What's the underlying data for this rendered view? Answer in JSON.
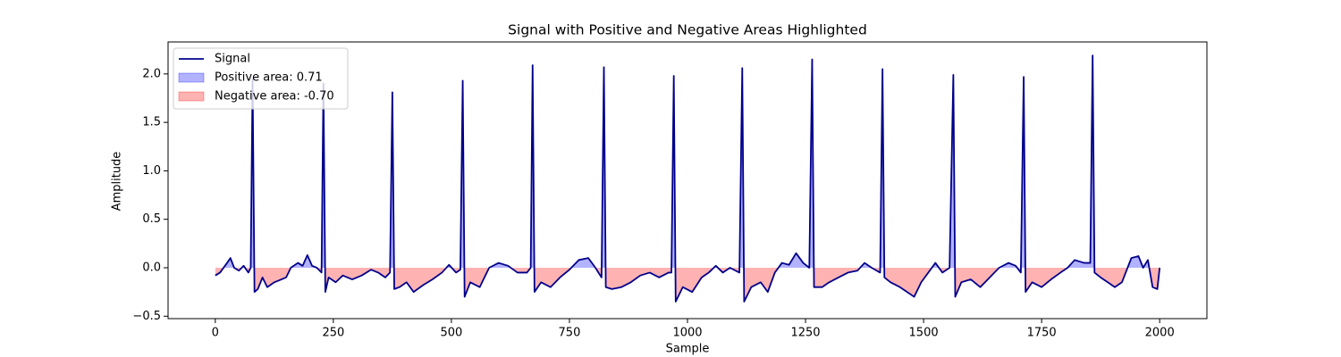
{
  "chart_data": {
    "type": "line",
    "title": "Signal with Positive and Negative Areas Highlighted",
    "xlabel": "Sample",
    "ylabel": "Amplitude",
    "x": [
      0,
      10,
      25,
      32,
      40,
      50,
      60,
      70,
      75,
      79,
      83,
      90,
      100,
      110,
      125,
      140,
      150,
      160,
      175,
      185,
      195,
      205,
      215,
      225,
      229,
      233,
      240,
      255,
      270,
      290,
      310,
      330,
      345,
      360,
      370,
      375,
      379,
      390,
      405,
      420,
      440,
      460,
      480,
      495,
      510,
      519,
      524,
      528,
      540,
      560,
      580,
      600,
      620,
      640,
      660,
      668,
      672,
      676,
      690,
      710,
      730,
      750,
      770,
      790,
      805,
      818,
      823,
      827,
      840,
      860,
      880,
      900,
      920,
      940,
      960,
      966,
      971,
      975,
      990,
      1010,
      1030,
      1045,
      1060,
      1075,
      1090,
      1110,
      1116,
      1120,
      1135,
      1155,
      1170,
      1185,
      1200,
      1215,
      1230,
      1245,
      1258,
      1264,
      1268,
      1285,
      1300,
      1320,
      1340,
      1360,
      1375,
      1390,
      1408,
      1413,
      1417,
      1430,
      1450,
      1465,
      1480,
      1495,
      1510,
      1525,
      1540,
      1555,
      1563,
      1567,
      1580,
      1600,
      1620,
      1640,
      1660,
      1680,
      1695,
      1706,
      1712,
      1716,
      1730,
      1750,
      1770,
      1790,
      1805,
      1820,
      1840,
      1853,
      1858,
      1862,
      1875,
      1890,
      1905,
      1920,
      1940,
      1955,
      1965,
      1975,
      1985,
      1995,
      2000
    ],
    "series": [
      {
        "name": "Signal",
        "color": "#00008b",
        "values": [
          -0.08,
          -0.05,
          0.05,
          0.1,
          0.0,
          -0.03,
          0.02,
          -0.05,
          0.0,
          1.95,
          -0.25,
          -0.22,
          -0.1,
          -0.2,
          -0.15,
          -0.12,
          -0.1,
          0.0,
          0.05,
          0.02,
          0.13,
          0.02,
          0.0,
          -0.05,
          1.9,
          -0.25,
          -0.1,
          -0.15,
          -0.08,
          -0.12,
          -0.08,
          -0.02,
          -0.05,
          -0.1,
          -0.05,
          1.81,
          -0.22,
          -0.2,
          -0.15,
          -0.25,
          -0.18,
          -0.12,
          -0.05,
          0.03,
          -0.05,
          -0.02,
          1.93,
          -0.3,
          -0.15,
          -0.2,
          0.0,
          0.05,
          0.02,
          -0.05,
          -0.05,
          0.0,
          2.09,
          -0.25,
          -0.15,
          -0.2,
          -0.1,
          -0.02,
          0.08,
          0.1,
          0.0,
          -0.1,
          2.07,
          -0.2,
          -0.22,
          -0.2,
          -0.15,
          -0.08,
          -0.05,
          -0.1,
          -0.05,
          -0.05,
          1.98,
          -0.35,
          -0.2,
          -0.25,
          -0.1,
          -0.05,
          0.02,
          -0.05,
          0.0,
          -0.05,
          2.06,
          -0.35,
          -0.2,
          -0.15,
          -0.25,
          -0.05,
          0.05,
          0.03,
          0.15,
          0.05,
          0.0,
          2.15,
          -0.2,
          -0.2,
          -0.15,
          -0.1,
          -0.05,
          -0.03,
          0.05,
          0.0,
          -0.05,
          2.05,
          -0.1,
          -0.15,
          -0.2,
          -0.25,
          -0.3,
          -0.15,
          -0.05,
          0.05,
          -0.05,
          0.0,
          1.99,
          -0.3,
          -0.15,
          -0.12,
          -0.2,
          -0.1,
          0.0,
          0.05,
          0.02,
          -0.05,
          1.97,
          -0.25,
          -0.15,
          -0.2,
          -0.12,
          -0.05,
          0.0,
          0.08,
          0.05,
          0.05,
          2.19,
          -0.05,
          -0.1,
          -0.15,
          -0.2,
          -0.15,
          0.1,
          0.12,
          0.0,
          0.08,
          -0.2,
          -0.22,
          0.0
        ]
      }
    ],
    "fills": [
      {
        "name": "Positive area: 0.71",
        "color": "#0000ff",
        "alpha": 0.3,
        "side": "above"
      },
      {
        "name": "Negative area: -0.70",
        "color": "#ff0000",
        "alpha": 0.3,
        "side": "below"
      }
    ],
    "xlim": [
      -100,
      2100
    ],
    "ylim": [
      -0.525,
      2.33
    ],
    "xticks": [
      0,
      250,
      500,
      750,
      1000,
      1250,
      1500,
      1750,
      2000
    ],
    "yticks": [
      {
        "value": -0.5,
        "label": "−0.5"
      },
      {
        "value": 0,
        "label": "0.0"
      },
      {
        "value": 0.5,
        "label": "0.5"
      },
      {
        "value": 1,
        "label": "1.0"
      },
      {
        "value": 1.5,
        "label": "1.5"
      },
      {
        "value": 2,
        "label": "2.0"
      }
    ],
    "legend": "upper left"
  }
}
